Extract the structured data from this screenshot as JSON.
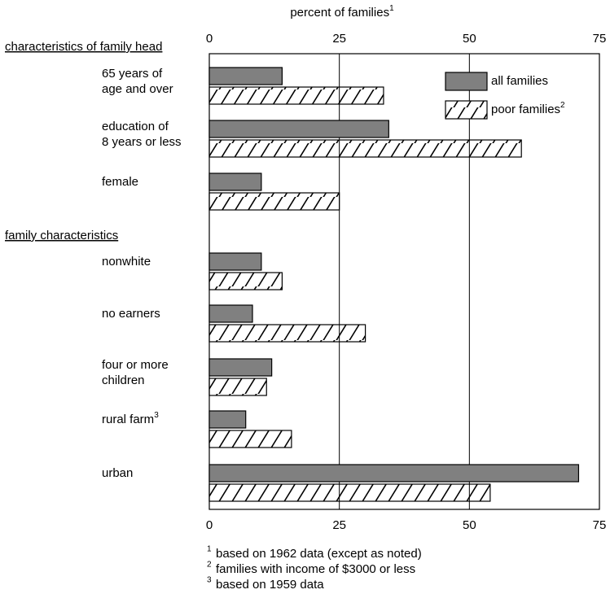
{
  "chart_data": {
    "type": "bar",
    "orientation": "horizontal",
    "x_label": "percent of families",
    "x_label_note": "1",
    "groups": [
      {
        "name": "characteristics of family head",
        "start": 0
      },
      {
        "name": "family characteristics",
        "start": 3
      }
    ],
    "categories": [
      [
        "65 years of",
        "age and over"
      ],
      [
        "education of",
        "8 years or less"
      ],
      [
        "female"
      ],
      [
        "nonwhite"
      ],
      [
        "no earners"
      ],
      [
        "four or more",
        "children"
      ],
      [
        "rural farm"
      ],
      [
        "urban"
      ]
    ],
    "category_notes": [
      null,
      null,
      null,
      null,
      null,
      null,
      "3",
      null
    ],
    "series": [
      {
        "name": "all families",
        "note": null,
        "color": "#808080",
        "pattern": "solid",
        "values": [
          14,
          34.5,
          10,
          10,
          8.3,
          12,
          7,
          71
        ]
      },
      {
        "name": "poor families",
        "note": "2",
        "color": "#ffffff",
        "pattern": "hatch",
        "values": [
          33.5,
          60,
          25,
          14,
          30,
          11,
          15.8,
          54
        ]
      }
    ],
    "xlim": [
      0,
      75
    ],
    "xticks": [
      0,
      25,
      50,
      75
    ],
    "grid": true,
    "legend": "upper right",
    "footnotes": [
      {
        "marker": "1",
        "text": "based on 1962 data (except as noted)"
      },
      {
        "marker": "2",
        "text": "families with income of $3000 or less"
      },
      {
        "marker": "3",
        "text": "based on 1959 data"
      }
    ]
  }
}
